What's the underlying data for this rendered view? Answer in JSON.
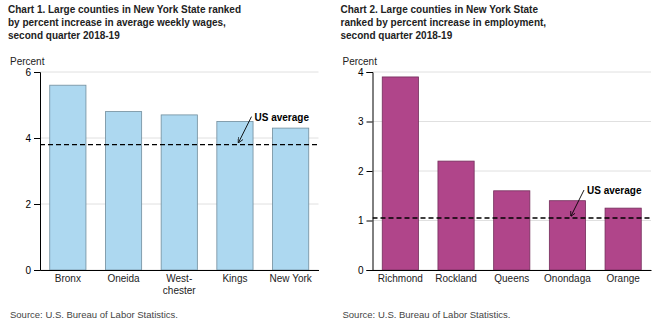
{
  "chart_data": [
    {
      "type": "bar",
      "title": "Chart 1. Large counties in New York State ranked\nby percent increase in average weekly wages,\nsecond quarter 2018-19",
      "ylabel": "Percent",
      "categories": [
        "Bronx",
        "Oneida",
        "West-\nchester",
        "Kings",
        "New York"
      ],
      "values": [
        5.6,
        4.8,
        4.7,
        4.5,
        4.3
      ],
      "color": "#add8f0",
      "ylim": [
        0,
        6
      ],
      "yticks": [
        0,
        2,
        4,
        6
      ],
      "grid": true,
      "reference_line": {
        "value": 3.8,
        "label": "US average"
      },
      "source": "Source: U.S. Bureau of Labor Statistics."
    },
    {
      "type": "bar",
      "title": "Chart 2. Large counties in New York State\nranked by percent increase in employment,\nsecond quarter 2018-19",
      "ylabel": "Percent",
      "categories": [
        "Richmond",
        "Rockland",
        "Queens",
        "Onondaga",
        "Orange"
      ],
      "values": [
        3.9,
        2.2,
        1.6,
        1.4,
        1.25
      ],
      "color": "#b0458a",
      "ylim": [
        0,
        4
      ],
      "yticks": [
        0,
        1,
        2,
        3,
        4
      ],
      "grid": true,
      "reference_line": {
        "value": 1.05,
        "label": "US average"
      },
      "source": "Source: U.S. Bureau of Labor Statistics."
    }
  ]
}
